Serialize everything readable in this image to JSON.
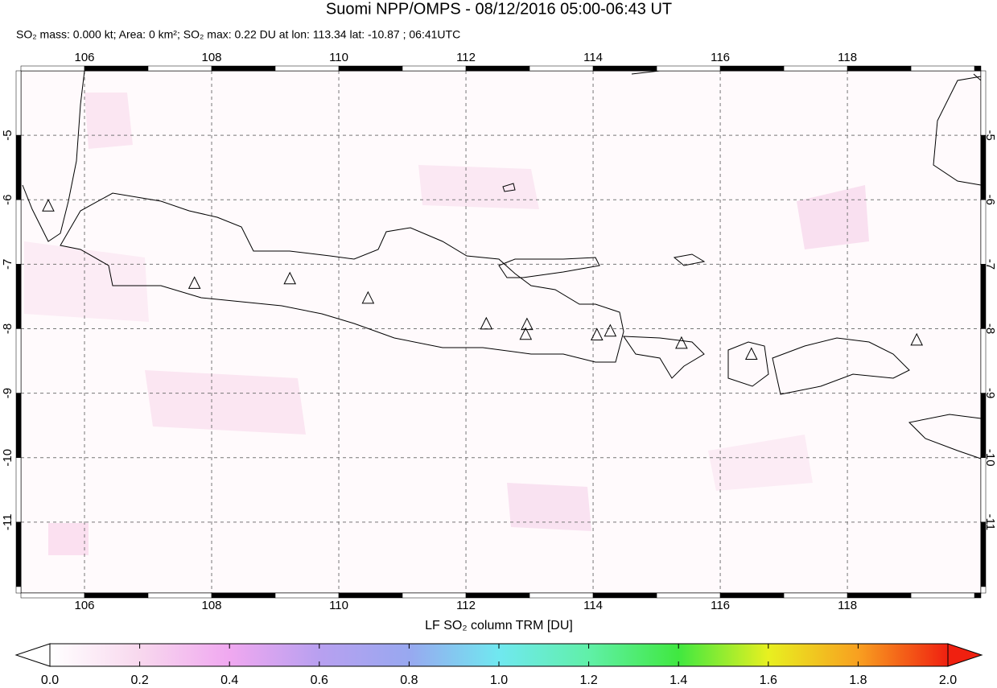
{
  "chart_data": {
    "type": "map",
    "title": "Suomi NPP/OMPS - 08/12/2016 05:00-06:43 UT",
    "subtitle": "SO₂ mass: 0.000 kt; Area: 0 km²; SO₂ max: 0.22 DU at lon: 113.34 lat: -10.87 ; 06:41UTC",
    "xlim": [
      105,
      120.1
    ],
    "ylim": [
      -12.1,
      -4
    ],
    "xticks": [
      106,
      108,
      110,
      112,
      114,
      116,
      118
    ],
    "yticks": [
      -5,
      -6,
      -7,
      -8,
      -9,
      -10,
      -11
    ],
    "grid": true,
    "volcanoes": {
      "lon": [
        105.43,
        107.73,
        109.23,
        110.46,
        112.32,
        112.96,
        112.94,
        114.06,
        114.27,
        115.39,
        116.49,
        119.09
      ],
      "lat": [
        -6.1,
        -7.3,
        -7.23,
        -7.53,
        -7.93,
        -7.94,
        -8.09,
        -8.1,
        -8.04,
        -8.23,
        -8.4,
        -8.18
      ]
    },
    "colorbar": {
      "label": "LF SO₂ column TRM [DU]",
      "lim": [
        0,
        2
      ],
      "ticks": [
        {
          "value": 0,
          "label": "0.0"
        },
        {
          "value": 0.2,
          "label": "0.2"
        },
        {
          "value": 0.4,
          "label": "0.4"
        },
        {
          "value": 0.6,
          "label": "0.6"
        },
        {
          "value": 0.8,
          "label": "0.8"
        },
        {
          "value": 1,
          "label": "1.0"
        },
        {
          "value": 1.2,
          "label": "1.2"
        },
        {
          "value": 1.4,
          "label": "1.4"
        },
        {
          "value": 1.6,
          "label": "1.6"
        },
        {
          "value": 1.8,
          "label": "1.8"
        },
        {
          "value": 2,
          "label": "2.0"
        }
      ]
    }
  }
}
